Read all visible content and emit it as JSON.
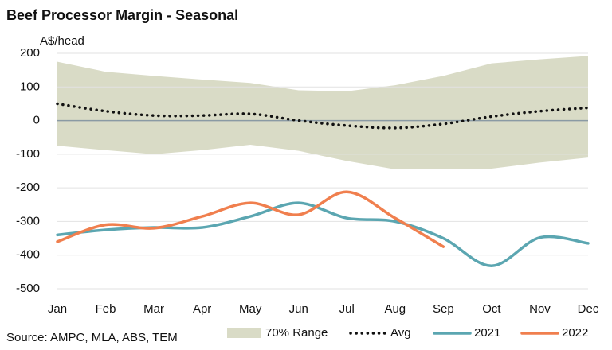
{
  "chart_data": {
    "type": "line",
    "title": "Beef Processor Margin - Seasonal",
    "y_label": "A$/head",
    "source": "Source: AMPC, MLA, ABS, TEM",
    "categories": [
      "Jan",
      "Feb",
      "Mar",
      "Apr",
      "May",
      "Jun",
      "Jul",
      "Aug",
      "Sep",
      "Oct",
      "Nov",
      "Dec"
    ],
    "ylim": [
      -500,
      200
    ],
    "yticks": [
      200,
      100,
      0,
      -100,
      -200,
      -300,
      -400,
      -500
    ],
    "grid": true,
    "legend": "bottom",
    "range": {
      "name": "70% Range",
      "color": "#d9dbc6",
      "upper": [
        175,
        145,
        133,
        122,
        112,
        90,
        87,
        105,
        133,
        170,
        182,
        192
      ],
      "lower": [
        -75,
        -88,
        -100,
        -88,
        -72,
        -90,
        -120,
        -145,
        -145,
        -143,
        -125,
        -110
      ]
    },
    "series": [
      {
        "name": "Avg",
        "color": "#111111",
        "style": "dotted",
        "values": [
          50,
          28,
          15,
          15,
          20,
          0,
          -15,
          -22,
          -10,
          12,
          28,
          38
        ]
      },
      {
        "name": "2021",
        "color": "#5ba6b1",
        "style": "solid",
        "values": [
          -340,
          -325,
          -318,
          -318,
          -285,
          -245,
          -290,
          -300,
          -350,
          -432,
          -348,
          -365
        ]
      },
      {
        "name": "2022",
        "color": "#f07f4e",
        "style": "solid",
        "values": [
          -360,
          -310,
          -320,
          -285,
          -245,
          -280,
          -212,
          -290,
          -375,
          null,
          null,
          null
        ]
      }
    ]
  }
}
